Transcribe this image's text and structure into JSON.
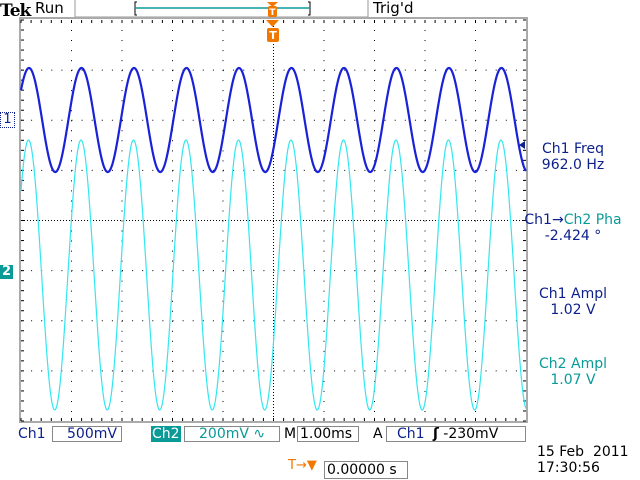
{
  "header": {
    "brand": "Tek",
    "run_state": "Run",
    "trigger_status": "Trig'd"
  },
  "channels": {
    "ch1": {
      "label": "Ch1",
      "marker": "1",
      "scale": "500mV",
      "color": "#1a22d8"
    },
    "ch2": {
      "label": "Ch2",
      "marker": "2",
      "scale": "200mV",
      "coupling_icon": "∿",
      "color": "#33e6f0"
    }
  },
  "timebase": {
    "label": "M",
    "value": "1.00ms"
  },
  "trigger": {
    "mode": "A",
    "source": "Ch1",
    "slope_icon": "rising-edge-icon",
    "slope_glyph": "ʃ",
    "level": "-230mV",
    "marker": "T"
  },
  "measurements": [
    {
      "name": "Ch1 Freq",
      "value": "962.0 Hz"
    },
    {
      "name_a": "Ch1",
      "arrow": "→",
      "name_b": "Ch2 Pha",
      "value": "-2.424 °"
    },
    {
      "name": "Ch1 Ampl",
      "value": "1.02 V"
    },
    {
      "name": "Ch2 Ampl",
      "value": "1.07 V"
    }
  ],
  "trigger_position": {
    "icon": "T→▼",
    "value": "0.00000 s"
  },
  "datetime": {
    "date": "15 Feb  2011",
    "time": "17:30:56"
  },
  "colors": {
    "accent": "#f07800",
    "ch2_badge": "#0a9a98"
  }
}
